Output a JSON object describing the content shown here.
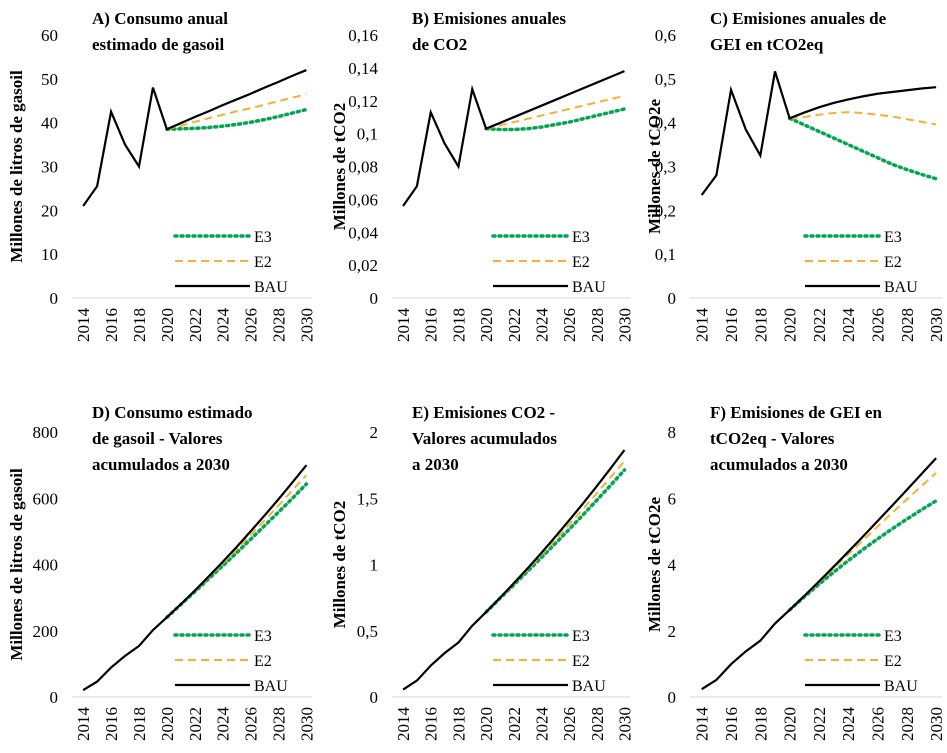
{
  "chart_data": [
    {
      "type": "line",
      "title": [
        "A) Consumo anual",
        "estimado de gasoil"
      ],
      "y_label": "Millones de litros de gasoil",
      "x": [
        2014,
        2015,
        2016,
        2017,
        2018,
        2019,
        2020,
        2021,
        2022,
        2023,
        2024,
        2025,
        2026,
        2027,
        2028,
        2029,
        2030
      ],
      "xlim": [
        2013.2,
        2030.4
      ],
      "xticks": [
        2014,
        2016,
        2018,
        2020,
        2022,
        2024,
        2026,
        2028,
        2030
      ],
      "ylim": [
        0,
        60
      ],
      "yticks": [
        0,
        10,
        20,
        30,
        40,
        50,
        60
      ],
      "series": [
        {
          "name": "E3",
          "color": "#00a651",
          "style": "dotted",
          "values": [
            null,
            null,
            null,
            null,
            null,
            null,
            38.5,
            38.6,
            38.7,
            38.9,
            39.2,
            39.6,
            40.1,
            40.7,
            41.4,
            42.2,
            43
          ]
        },
        {
          "name": "E2",
          "color": "#f7b032",
          "style": "dashed",
          "values": [
            null,
            null,
            null,
            null,
            null,
            null,
            38.5,
            39.3,
            40.2,
            41,
            41.8,
            42.6,
            43.3,
            44.1,
            44.9,
            45.7,
            46.5
          ]
        },
        {
          "name": "BAU",
          "color": "#000000",
          "style": "solid",
          "values": [
            21,
            25.5,
            42.5,
            35,
            30,
            48,
            38.5,
            39.9,
            41.3,
            42.6,
            44,
            45.3,
            46.6,
            48,
            49.3,
            50.7,
            52
          ]
        }
      ]
    },
    {
      "type": "line",
      "title": [
        "B) Emisiones anuales",
        "de CO2"
      ],
      "y_label": "Millones de tCO2",
      "x": [
        2014,
        2015,
        2016,
        2017,
        2018,
        2019,
        2020,
        2021,
        2022,
        2023,
        2024,
        2025,
        2026,
        2027,
        2028,
        2029,
        2030
      ],
      "xlim": [
        2013.2,
        2030.4
      ],
      "xticks": [
        2014,
        2016,
        2018,
        2020,
        2022,
        2024,
        2026,
        2028,
        2030
      ],
      "ylim": [
        0,
        0.16
      ],
      "yticks": [
        0,
        {
          "value": 0.02,
          "label": "0,02"
        },
        {
          "value": 0.04,
          "label": "0,04"
        },
        {
          "value": 0.06,
          "label": "0,06"
        },
        {
          "value": 0.08,
          "label": "0,08"
        },
        {
          "value": 0.1,
          "label": "0,1"
        },
        {
          "value": 0.12,
          "label": "0,12"
        },
        {
          "value": 0.14,
          "label": "0,14"
        },
        {
          "value": 0.16,
          "label": "0,16"
        }
      ],
      "series": [
        {
          "name": "E3",
          "color": "#00a651",
          "style": "dotted",
          "values": [
            null,
            null,
            null,
            null,
            null,
            null,
            0.103,
            0.1025,
            0.1025,
            0.103,
            0.104,
            0.1055,
            0.107,
            0.109,
            0.111,
            0.113,
            0.115
          ]
        },
        {
          "name": "E2",
          "color": "#f7b032",
          "style": "dashed",
          "values": [
            null,
            null,
            null,
            null,
            null,
            null,
            0.103,
            0.105,
            0.107,
            0.109,
            0.111,
            0.113,
            0.115,
            0.117,
            0.119,
            0.121,
            0.123
          ]
        },
        {
          "name": "BAU",
          "color": "#000000",
          "style": "solid",
          "values": [
            0.056,
            0.068,
            0.113,
            0.094,
            0.08,
            0.127,
            0.103,
            0.1065,
            0.11,
            0.1135,
            0.117,
            0.1205,
            0.124,
            0.1275,
            0.131,
            0.1345,
            0.138
          ]
        }
      ]
    },
    {
      "type": "line",
      "title": [
        "C) Emisiones anuales de",
        "GEI en tCO2eq"
      ],
      "y_label": "Millones de tCO2e",
      "x": [
        2014,
        2015,
        2016,
        2017,
        2018,
        2019,
        2020,
        2021,
        2022,
        2023,
        2024,
        2025,
        2026,
        2027,
        2028,
        2029,
        2030
      ],
      "xlim": [
        2013.2,
        2030.4
      ],
      "xticks": [
        2014,
        2016,
        2018,
        2020,
        2022,
        2024,
        2026,
        2028,
        2030
      ],
      "ylim": [
        0,
        0.6
      ],
      "yticks": [
        0,
        {
          "value": 0.1,
          "label": "0,1"
        },
        {
          "value": 0.2,
          "label": "0,2"
        },
        {
          "value": 0.3,
          "label": "0,3"
        },
        {
          "value": 0.4,
          "label": "0,4"
        },
        {
          "value": 0.5,
          "label": "0,5"
        },
        {
          "value": 0.6,
          "label": "0,6"
        }
      ],
      "series": [
        {
          "name": "E3",
          "color": "#00a651",
          "style": "dotted",
          "values": [
            null,
            null,
            null,
            null,
            null,
            null,
            0.41,
            0.395,
            0.38,
            0.365,
            0.35,
            0.335,
            0.32,
            0.305,
            0.293,
            0.282,
            0.272
          ]
        },
        {
          "name": "E2",
          "color": "#f7b032",
          "style": "dashed",
          "values": [
            null,
            null,
            null,
            null,
            null,
            null,
            0.41,
            0.413,
            0.418,
            0.422,
            0.424,
            0.422,
            0.418,
            0.414,
            0.408,
            0.402,
            0.396
          ]
        },
        {
          "name": "BAU",
          "color": "#000000",
          "style": "solid",
          "values": [
            0.235,
            0.28,
            0.475,
            0.385,
            0.325,
            0.517,
            0.41,
            0.423,
            0.435,
            0.445,
            0.453,
            0.46,
            0.466,
            0.47,
            0.474,
            0.478,
            0.481
          ]
        }
      ]
    },
    {
      "type": "line",
      "title": [
        "D) Consumo estimado",
        "de gasoil - Valores",
        "acumulados a 2030"
      ],
      "y_label": "Millones de litros de gasoil",
      "x": [
        2014,
        2015,
        2016,
        2017,
        2018,
        2019,
        2020,
        2021,
        2022,
        2023,
        2024,
        2025,
        2026,
        2027,
        2028,
        2029,
        2030
      ],
      "xlim": [
        2013.2,
        2030.4
      ],
      "xticks": [
        2014,
        2016,
        2018,
        2020,
        2022,
        2024,
        2026,
        2028,
        2030
      ],
      "ylim": [
        0,
        800
      ],
      "yticks": [
        0,
        200,
        400,
        600,
        800
      ],
      "series": [
        {
          "name": "E3",
          "color": "#00a651",
          "style": "dotted",
          "values": [
            null,
            null,
            null,
            null,
            null,
            null,
            240.5,
            279,
            318,
            357,
            396,
            435.6,
            476,
            517,
            558,
            600,
            643
          ]
        },
        {
          "name": "E2",
          "color": "#f7b032",
          "style": "dashed",
          "values": [
            null,
            null,
            null,
            null,
            null,
            null,
            240.5,
            279.8,
            320,
            361,
            403,
            445.6,
            489,
            533,
            578,
            624,
            670
          ]
        },
        {
          "name": "BAU",
          "color": "#000000",
          "style": "solid",
          "values": [
            21,
            46.5,
            89,
            124,
            154,
            202,
            240.5,
            280,
            321,
            364,
            408,
            453,
            500,
            548,
            597,
            648,
            700
          ]
        }
      ]
    },
    {
      "type": "line",
      "title": [
        "E) Emisiones CO2 -",
        "Valores  acumulados",
        "a 2030"
      ],
      "y_label": "Millones de tCO2",
      "x": [
        2014,
        2015,
        2016,
        2017,
        2018,
        2019,
        2020,
        2021,
        2022,
        2023,
        2024,
        2025,
        2026,
        2027,
        2028,
        2029,
        2030
      ],
      "xlim": [
        2013.2,
        2030.4
      ],
      "xticks": [
        2014,
        2016,
        2018,
        2020,
        2022,
        2024,
        2026,
        2028,
        2030
      ],
      "ylim": [
        0,
        2
      ],
      "yticks": [
        0,
        {
          "value": 0.5,
          "label": "0,5"
        },
        1,
        {
          "value": 1.5,
          "label": "1,5"
        },
        2
      ],
      "series": [
        {
          "name": "E3",
          "color": "#00a651",
          "style": "dotted",
          "values": [
            null,
            null,
            null,
            null,
            null,
            null,
            0.641,
            0.744,
            0.846,
            0.949,
            1.053,
            1.158,
            1.265,
            1.374,
            1.485,
            1.598,
            1.713
          ]
        },
        {
          "name": "E2",
          "color": "#f7b032",
          "style": "dashed",
          "values": [
            null,
            null,
            null,
            null,
            null,
            null,
            0.641,
            0.746,
            0.853,
            0.962,
            1.073,
            1.186,
            1.301,
            1.418,
            1.537,
            1.658,
            1.781
          ]
        },
        {
          "name": "BAU",
          "color": "#000000",
          "style": "solid",
          "values": [
            0.056,
            0.124,
            0.237,
            0.331,
            0.411,
            0.538,
            0.641,
            0.748,
            0.858,
            0.971,
            1.088,
            1.209,
            1.333,
            1.46,
            1.591,
            1.726,
            1.864
          ]
        }
      ]
    },
    {
      "type": "line",
      "title": [
        "F) Emisiones de GEI en",
        "tCO2eq - Valores",
        "acumulados a 2030"
      ],
      "y_label": "Millones de tCO2e",
      "x": [
        2014,
        2015,
        2016,
        2017,
        2018,
        2019,
        2020,
        2021,
        2022,
        2023,
        2024,
        2025,
        2026,
        2027,
        2028,
        2029,
        2030
      ],
      "xlim": [
        2013.2,
        2030.4
      ],
      "xticks": [
        2014,
        2016,
        2018,
        2020,
        2022,
        2024,
        2026,
        2028,
        2030
      ],
      "ylim": [
        0,
        8
      ],
      "yticks": [
        0,
        2,
        4,
        6,
        8
      ],
      "series": [
        {
          "name": "E3",
          "color": "#00a651",
          "style": "dotted",
          "values": [
            null,
            null,
            null,
            null,
            null,
            null,
            2.627,
            3.022,
            3.402,
            3.767,
            4.117,
            4.452,
            4.772,
            5.077,
            5.37,
            5.652,
            5.924
          ]
        },
        {
          "name": "E2",
          "color": "#f7b032",
          "style": "dashed",
          "values": [
            null,
            null,
            null,
            null,
            null,
            null,
            2.627,
            3.04,
            3.458,
            3.88,
            4.304,
            4.726,
            5.144,
            5.558,
            5.966,
            6.368,
            6.764
          ]
        },
        {
          "name": "BAU",
          "color": "#000000",
          "style": "solid",
          "values": [
            0.235,
            0.515,
            0.99,
            1.375,
            1.7,
            2.217,
            2.627,
            3.05,
            3.485,
            3.93,
            4.383,
            4.843,
            5.309,
            5.779,
            6.253,
            6.731,
            7.212
          ]
        }
      ]
    }
  ]
}
